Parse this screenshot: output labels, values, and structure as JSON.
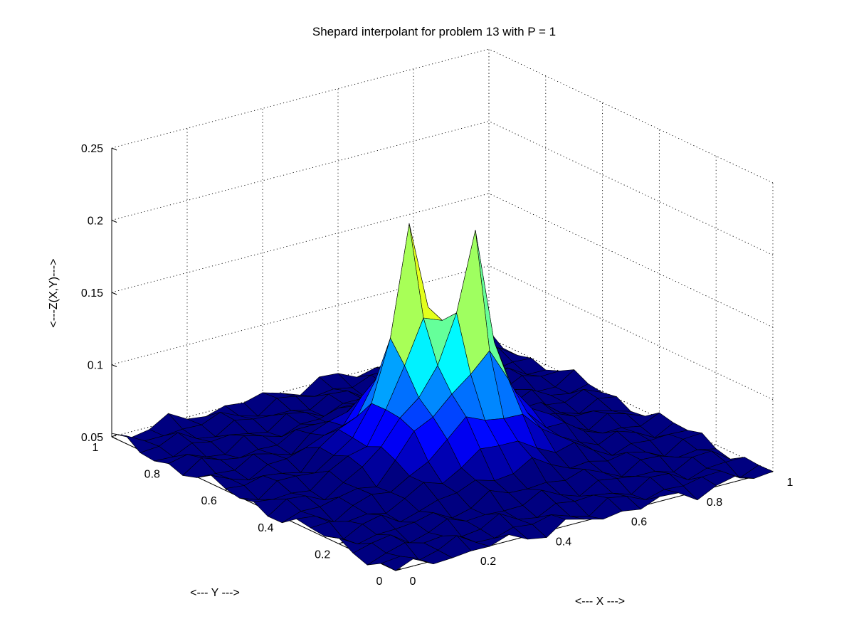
{
  "chart_data": {
    "type": "surface",
    "title": "Shepard interpolant for problem 13 with P = 1",
    "xlabel": "<--- X --->",
    "ylabel": "<--- Y --->",
    "zlabel": "<---Z(X,Y)--->",
    "xlim": [
      0,
      1
    ],
    "ylim": [
      0,
      1
    ],
    "zlim": [
      0.05,
      0.25
    ],
    "grid": true,
    "colormap": "jet",
    "x_ticks": [
      "0",
      "0.2",
      "0.4",
      "0.6",
      "0.8",
      "1"
    ],
    "y_ticks": [
      "0",
      "0.2",
      "0.4",
      "0.6",
      "0.8",
      "1"
    ],
    "z_ticks": [
      "0.05",
      "0.1",
      "0.15",
      "0.2",
      "0.25"
    ],
    "grid_size": 21,
    "surface_summary": {
      "description": "Central mound with two sharp spikes near (x,y) = (0.45,0.55) and (0.55,0.45)",
      "peaks": [
        {
          "x": 0.45,
          "y": 0.55,
          "z": 0.225
        },
        {
          "x": 0.55,
          "y": 0.45,
          "z": 0.22
        }
      ],
      "center_z": 0.13,
      "edge_z": 0.07
    }
  }
}
